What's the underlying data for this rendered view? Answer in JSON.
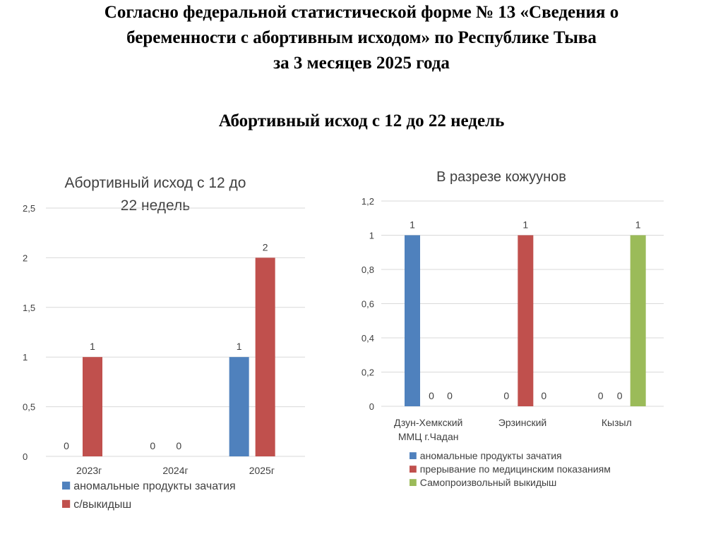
{
  "slide": {
    "title_lines": [
      "Согласно федеральной статистической форме № 13 «Сведения о",
      "беременности с абортивным исходом» по Республике Тыва",
      "за 3 месяцев 2025 года"
    ],
    "subtitle": "Абортивный исход с 12 до 22 недель"
  },
  "chart_data": [
    {
      "type": "bar",
      "title_lines": [
        "Абортивный исход с 12 до",
        "22 недель"
      ],
      "categories": [
        "2023г",
        "2024г",
        "2025г"
      ],
      "series": [
        {
          "name": "аномальные продукты зачатия",
          "color": "#4F81BD",
          "values": [
            0,
            0,
            1
          ]
        },
        {
          "name": "с/выкидыш",
          "color": "#C0504D",
          "values": [
            1,
            0,
            2
          ]
        }
      ],
      "ylim": [
        0,
        2.5
      ],
      "yticks": [
        "0",
        "0,5",
        "1",
        "1,5",
        "2",
        "2,5"
      ],
      "grid": true,
      "legend": "bottom"
    },
    {
      "type": "bar",
      "title_lines": [
        "В разрезе кожуунов"
      ],
      "categories": [
        [
          "Дзун-Хемкский",
          "ММЦ г.Чадан"
        ],
        [
          "Эрзинский"
        ],
        [
          "Кызыл"
        ]
      ],
      "series": [
        {
          "name": "аномальные  продукты зачатия",
          "color": "#4F81BD",
          "values": [
            1,
            0,
            0
          ]
        },
        {
          "name": "прерывание  по медицинским показаниям",
          "color": "#C0504D",
          "values": [
            0,
            1,
            0
          ]
        },
        {
          "name": "Самопроизвольный выкидыш",
          "color": "#9BBB59",
          "values": [
            0,
            0,
            1
          ]
        }
      ],
      "ylim": [
        0,
        1.2
      ],
      "yticks": [
        "0",
        "0,2",
        "0,4",
        "0,6",
        "0,8",
        "1",
        "1,2"
      ],
      "grid": true,
      "legend": "bottom"
    }
  ]
}
